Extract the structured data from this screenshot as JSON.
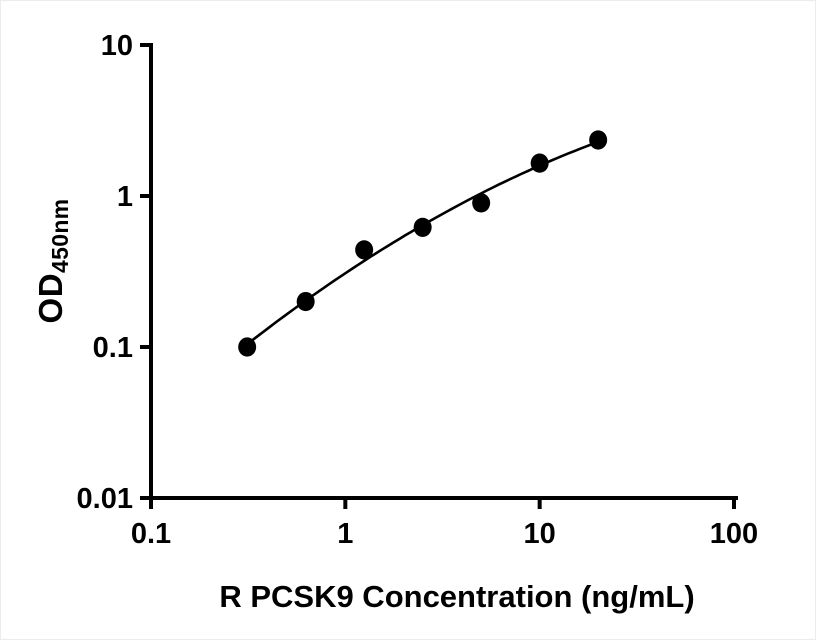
{
  "chart_data": {
    "type": "scatter",
    "title": "",
    "xlabel": "R PCSK9 Concentration (ng/mL)",
    "ylabel_main": "OD",
    "ylabel_sub": "450nm",
    "x": [
      0.3125,
      0.625,
      1.25,
      2.5,
      5,
      10,
      20
    ],
    "y": [
      0.1,
      0.2,
      0.44,
      0.62,
      0.9,
      1.65,
      2.35
    ],
    "fit_curve": true,
    "x_scale": "log",
    "y_scale": "log",
    "xlim": [
      0.1,
      100
    ],
    "ylim": [
      0.01,
      10
    ],
    "x_ticks": [
      0.1,
      1,
      10,
      100
    ],
    "x_tick_labels": [
      "0.1",
      "1",
      "10",
      "100"
    ],
    "y_ticks": [
      0.01,
      0.1,
      1,
      10
    ],
    "y_tick_labels": [
      "0.01",
      "0.1",
      "1",
      "10"
    ],
    "grid": false,
    "legend": null,
    "marker_color": "#000000",
    "line_color": "#000000",
    "axis_color": "#000000",
    "background_color": "#ffffff"
  }
}
